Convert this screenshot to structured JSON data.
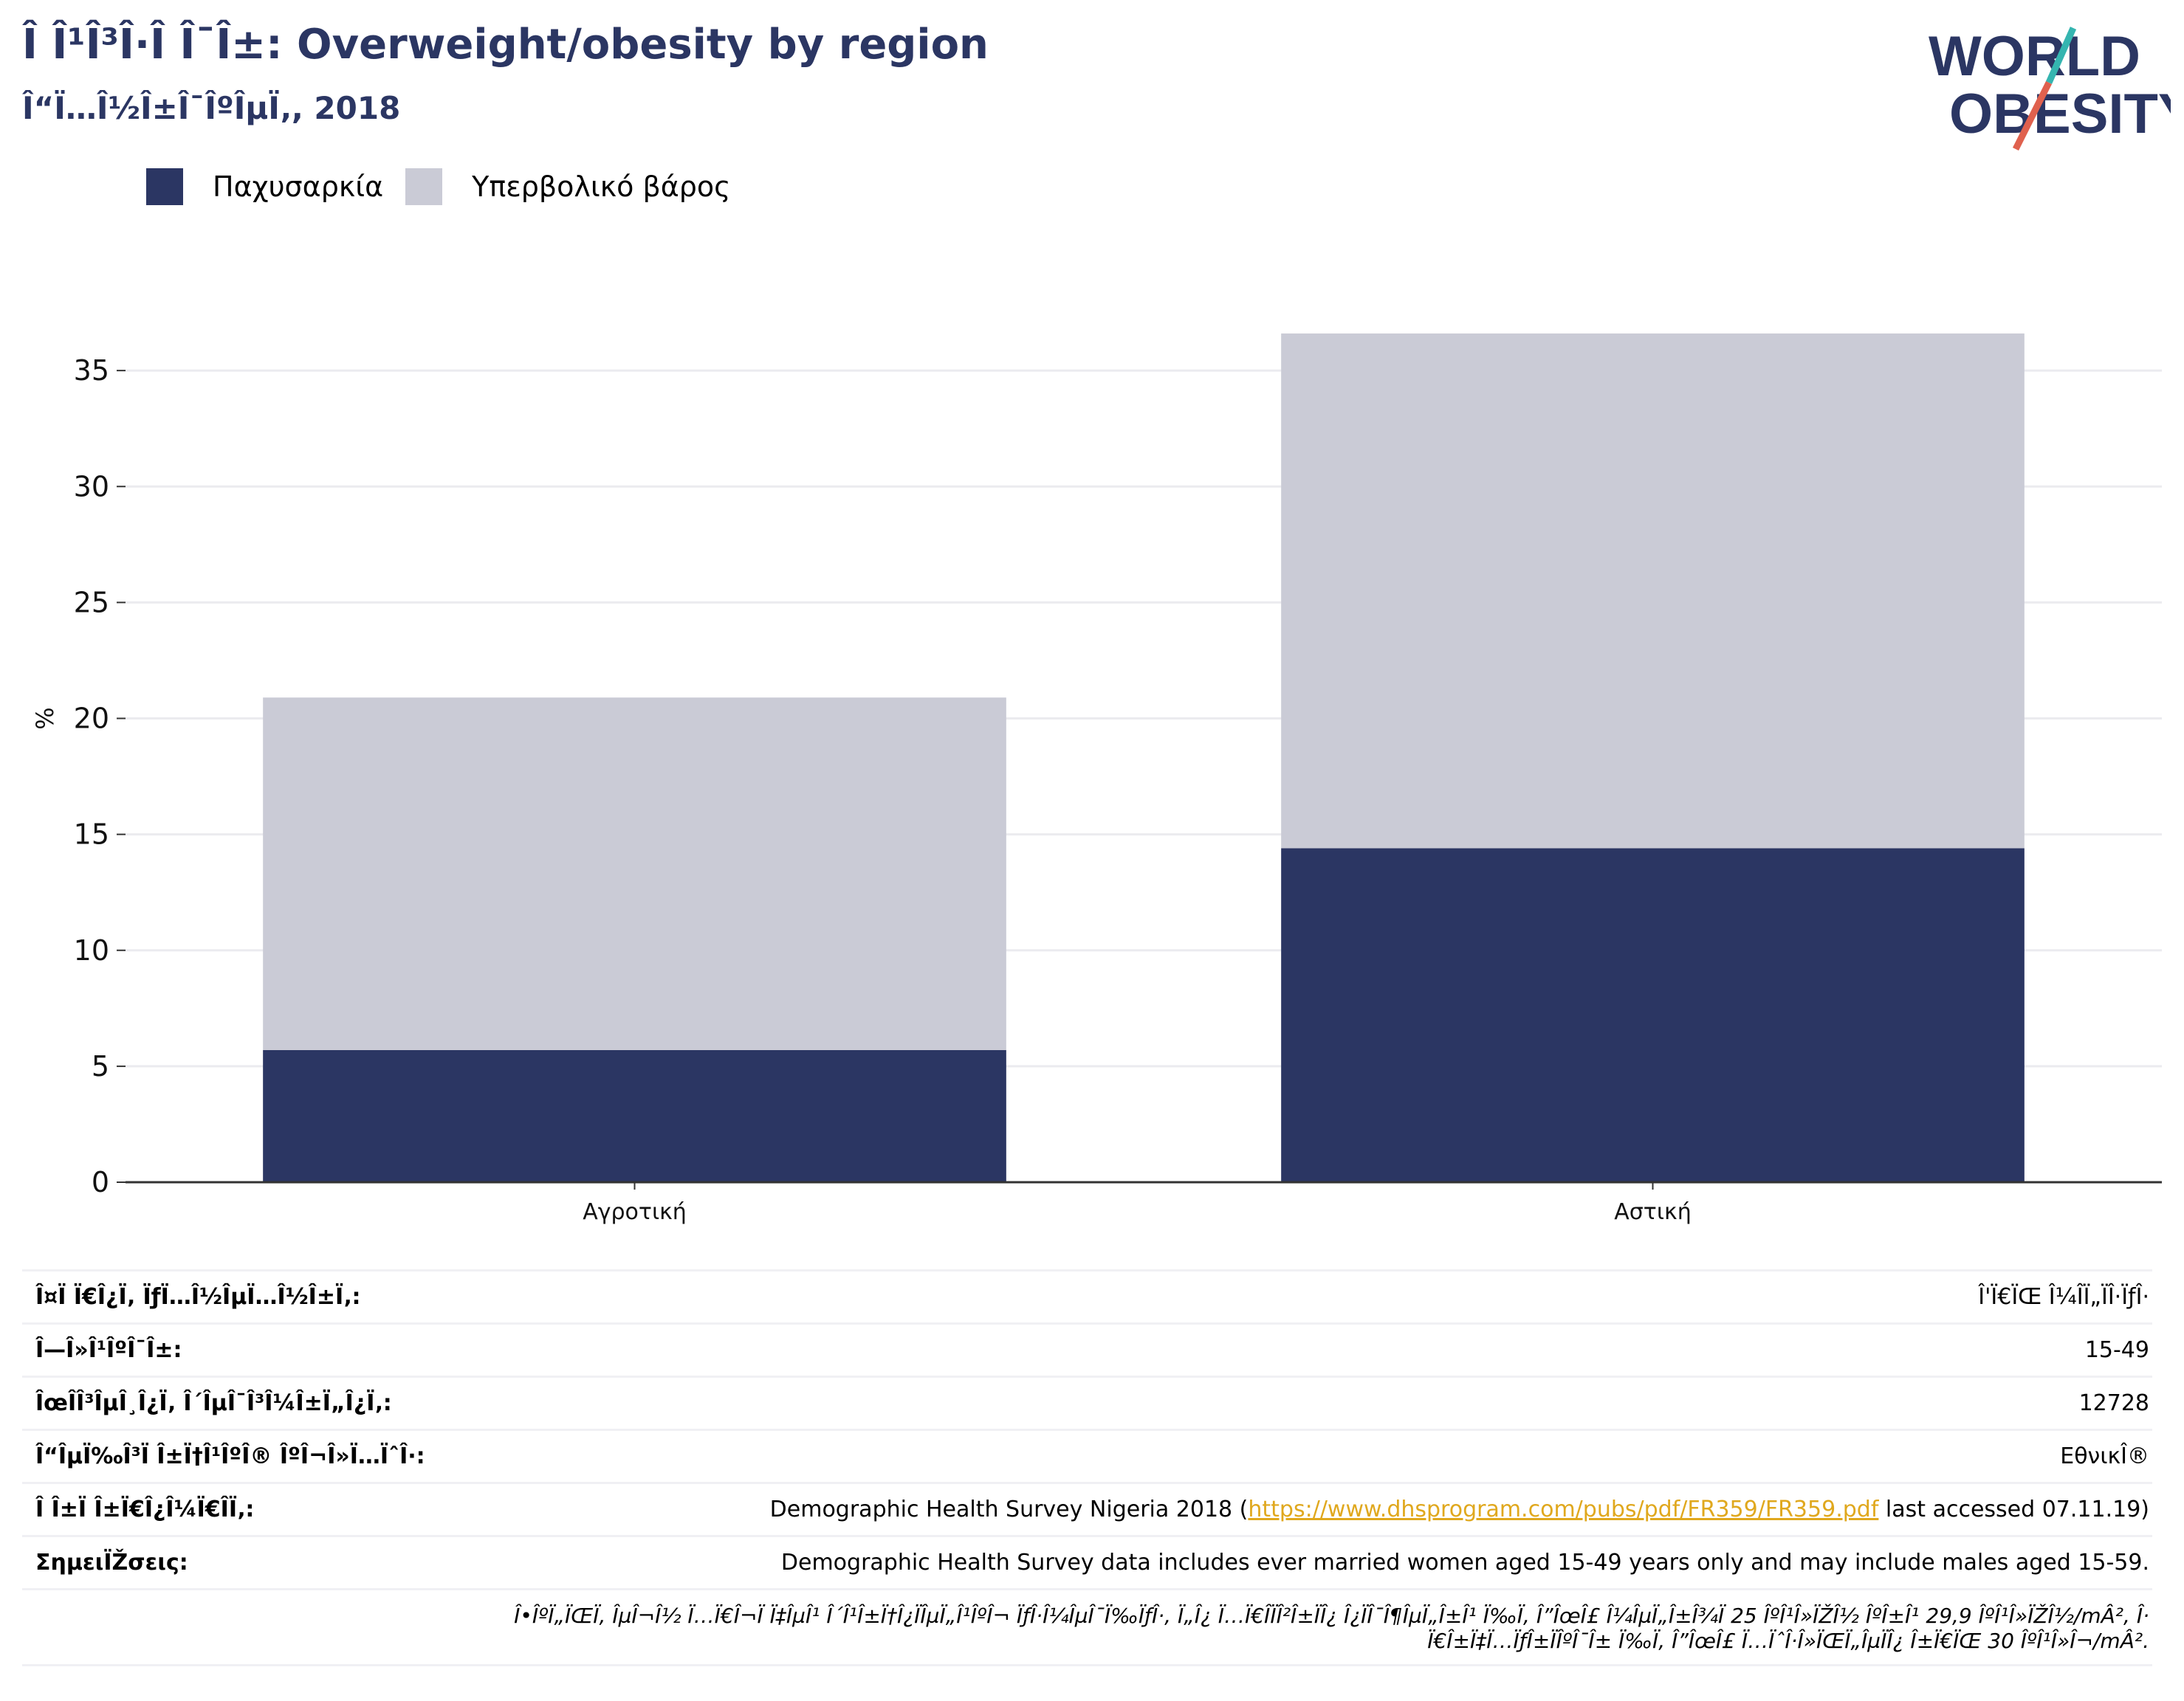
{
  "header": {
    "title": "Î Î¹Î³Î·Î Î¯Î±: Overweight/obesity by region",
    "subtitle": "Î“Ï…Î½Î±Î¯ÎºÎµÏ‚, 2018"
  },
  "logo": {
    "line1": "WORLD",
    "line2": "OBESITY",
    "colors": {
      "text": "#2b3663",
      "slash_top": "#35b5b0",
      "slash_bottom": "#e0614e"
    }
  },
  "colors": {
    "obesity": "#2b3663",
    "overweight": "#cacbd6",
    "grid": "#ebebef",
    "axis": "#333333"
  },
  "chart_data": {
    "type": "bar",
    "stacked": true,
    "categories": [
      "Αγροτική",
      "Αστική"
    ],
    "series": [
      {
        "name": "Παχυσαρκία",
        "values": [
          5.7,
          14.4
        ]
      },
      {
        "name": "Υπερβολικό βάρος",
        "values": [
          15.2,
          22.2
        ]
      }
    ],
    "ylabel": "%",
    "xlabel": "",
    "ylim": [
      0,
      36.5
    ],
    "yticks": [
      0,
      5,
      10,
      15,
      20,
      25,
      30,
      35
    ],
    "grid": true,
    "legend_position": "top-left"
  },
  "info": {
    "rows": [
      {
        "key": "Î¤Ï Ï€Î¿Ï‚ ÏƒÏ…Î½ÎµÏ…Î½Î±Ï‚:",
        "value": "Î'Ï€ÏŒ Î¼Î­Ï„ÏÎ·ÏƒÎ·"
      },
      {
        "key": "Î—Î»Î¹ÎºÎ¯Î±:",
        "value": "15-49"
      },
      {
        "key": "ÎœÎ­Î³ÎµÎ¸Î¿Ï‚ Î´ÎµÎ¯Î³Î¼Î±Ï„Î¿Ï‚:",
        "value": "12728"
      },
      {
        "key": "Î“ÎµÏ‰Î³Ï Î±Ï†Î¹ÎºÎ® ÎºÎ¬Î»Ï…ÏˆÎ·:",
        "value": "ΕθνικÎ®"
      }
    ],
    "source": {
      "key": "Î Î±Ï Î±Ï€Î¿Î¼Ï€Î­Ï‚:",
      "prefix": "Demographic Health Survey Nigeria 2018 (",
      "link": "https://www.dhsprogram.com/pubs/pdf/FR359/FR359.pdf",
      "suffix": " last accessed 07.11.19)"
    },
    "notes": {
      "key": "ΣημειÏŽσεις:",
      "value": "Demographic Health Survey data includes ever married women aged 15-49 years only and may include males aged 15-59."
    },
    "footnote_line1": "Î•ÎºÏ„ÏŒÏ‚ ÎµÎ¬Î½ Ï…Ï€Î¬Ï Ï‡ÎµÎ¹ Î´Î¹Î±Ï†Î¿ÏÎµÏ„Î¹ÎºÎ¬ ÏƒÎ·Î¼ÎµÎ¯Ï‰ÏƒÎ·, Ï„Î¿ Ï…Ï€Î­ÏÎ²Î±ÏÎ¿ Î¿ÏÎ¯Î¶ÎµÏ„Î±Î¹ Ï‰Ï‚ Î”ÎœÎ£ Î¼ÎµÏ„Î±Î¾Ï 25 ÎºÎ¹Î»ÏŽÎ½ ÎºÎ±Î¹ 29,9 ÎºÎ¹Î»ÏŽÎ½/mÂ², Î·",
    "footnote_line2": "Ï€Î±Ï‡Ï…ÏƒÎ±ÏÎºÎ¯Î± Ï‰Ï‚ Î”ÎœÎ£ Ï…ÏˆÎ·Î»ÏŒÏ„ÎµÏÎ¿ Î±Ï€ÏŒ 30 ÎºÎ¹Î»Î¬/mÂ²."
  }
}
